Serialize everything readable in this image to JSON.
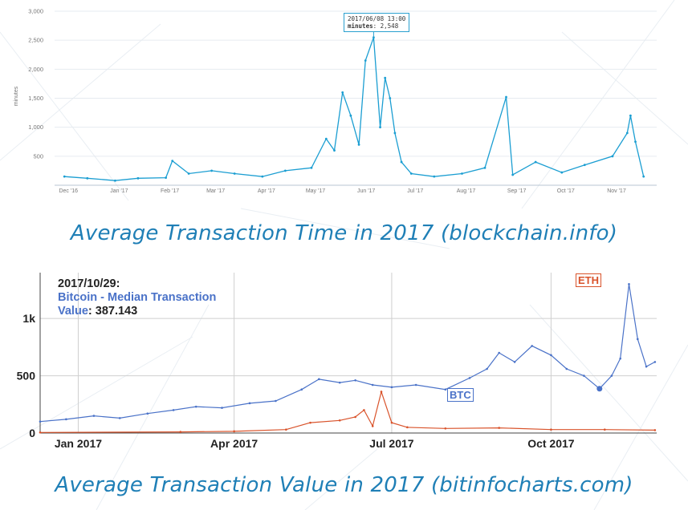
{
  "captions": {
    "top": "Average Transaction Time in 2017 (blockchain.info)",
    "bottom": "Average Transaction Value in 2017 (bitinfocharts.com)"
  },
  "tooltip_top": {
    "date": "2017/06/08 13:00",
    "label": "minutes",
    "value": "2,548"
  },
  "tooltip_bottom": {
    "date": "2017/10/29:",
    "series": "Bitcoin - Median Transaction",
    "value_label": "Value",
    "value": "387.143"
  },
  "colors": {
    "top_line": "#1b9ed2",
    "btc": "#4a72c8",
    "eth": "#d9532b",
    "caption": "#1f7fb6"
  },
  "chart_data": [
    {
      "type": "line",
      "ylabel": "minutes",
      "ylim": [
        0,
        3000
      ],
      "yticks": [
        500,
        1000,
        1500,
        2000,
        2500,
        3000
      ],
      "ytick_labels": [
        "500",
        "1,000",
        "1,500",
        "2,000",
        "2,500",
        "3,000"
      ],
      "xtick_labels": [
        "Dec '16",
        "Jan '17",
        "Feb '17",
        "Mar '17",
        "Apr '17",
        "May '17",
        "Jun '17",
        "Jul '17",
        "Aug '17",
        "Sep '17",
        "Oct '17",
        "Nov '17"
      ],
      "grid": true,
      "series": [
        {
          "x": [
            "2016-12-01",
            "2016-12-15",
            "2017-01-01",
            "2017-01-15",
            "2017-02-01",
            "2017-02-05",
            "2017-02-15",
            "2017-03-01",
            "2017-03-15",
            "2017-04-01",
            "2017-04-15",
            "2017-05-01",
            "2017-05-10",
            "2017-05-15",
            "2017-05-20",
            "2017-05-25",
            "2017-05-30",
            "2017-06-03",
            "2017-06-08",
            "2017-06-12",
            "2017-06-15",
            "2017-06-18",
            "2017-06-21",
            "2017-06-25",
            "2017-07-01",
            "2017-07-15",
            "2017-08-01",
            "2017-08-15",
            "2017-08-28",
            "2017-09-01",
            "2017-09-15",
            "2017-10-01",
            "2017-10-15",
            "2017-11-01",
            "2017-11-10",
            "2017-11-12",
            "2017-11-15",
            "2017-11-20"
          ],
          "values": [
            150,
            120,
            80,
            120,
            130,
            420,
            200,
            250,
            200,
            150,
            250,
            300,
            800,
            600,
            1600,
            1200,
            700,
            2150,
            2548,
            1000,
            1850,
            1500,
            900,
            400,
            200,
            150,
            200,
            300,
            1520,
            180,
            400,
            220,
            350,
            500,
            900,
            1200,
            750,
            150
          ]
        }
      ]
    },
    {
      "type": "line",
      "ylim": [
        0,
        1400
      ],
      "yticks": [
        0,
        500,
        1000
      ],
      "ytick_labels": [
        "0",
        "500",
        "1k"
      ],
      "xtick_labels": [
        "Jan 2017",
        "Apr 2017",
        "Jul 2017",
        "Oct 2017"
      ],
      "grid": true,
      "series": [
        {
          "name": "BTC",
          "x": [
            "2016-12-10",
            "2016-12-25",
            "2017-01-10",
            "2017-01-25",
            "2017-02-10",
            "2017-02-25",
            "2017-03-10",
            "2017-03-25",
            "2017-04-10",
            "2017-04-25",
            "2017-05-10",
            "2017-05-20",
            "2017-06-01",
            "2017-06-10",
            "2017-06-20",
            "2017-07-01",
            "2017-07-15",
            "2017-08-01",
            "2017-08-15",
            "2017-08-25",
            "2017-09-01",
            "2017-09-10",
            "2017-09-20",
            "2017-10-01",
            "2017-10-10",
            "2017-10-20",
            "2017-10-29",
            "2017-11-05",
            "2017-11-10",
            "2017-11-15",
            "2017-11-20",
            "2017-11-25",
            "2017-11-30"
          ],
          "values": [
            100,
            120,
            150,
            130,
            170,
            200,
            230,
            220,
            260,
            280,
            380,
            470,
            440,
            460,
            420,
            400,
            420,
            380,
            480,
            560,
            700,
            620,
            760,
            680,
            560,
            500,
            387,
            500,
            650,
            1300,
            820,
            580,
            620
          ]
        },
        {
          "name": "ETH",
          "x": [
            "2016-12-10",
            "2017-03-01",
            "2017-04-01",
            "2017-05-01",
            "2017-05-15",
            "2017-06-01",
            "2017-06-10",
            "2017-06-15",
            "2017-06-20",
            "2017-06-25",
            "2017-07-01",
            "2017-07-10",
            "2017-08-01",
            "2017-09-01",
            "2017-10-01",
            "2017-11-01",
            "2017-11-30"
          ],
          "values": [
            5,
            10,
            15,
            30,
            90,
            110,
            140,
            200,
            60,
            360,
            90,
            50,
            40,
            45,
            30,
            30,
            25
          ]
        }
      ]
    }
  ]
}
